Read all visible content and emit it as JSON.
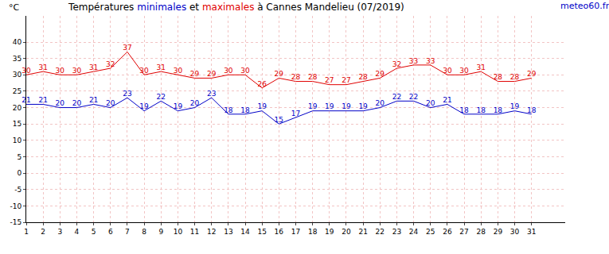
{
  "chart_data": {
    "type": "line",
    "title": "Températures minimales et maximales à Cannes Mandelieu (07/2019)",
    "source": "meteo60.fr",
    "ylabel": "°C",
    "x": [
      1,
      2,
      3,
      4,
      5,
      6,
      7,
      8,
      9,
      10,
      11,
      12,
      13,
      14,
      15,
      16,
      17,
      18,
      19,
      20,
      21,
      22,
      23,
      24,
      25,
      26,
      27,
      28,
      29,
      30,
      31
    ],
    "series": [
      {
        "name": "maximales",
        "color": "#e00000",
        "values": [
          30,
          31,
          30,
          30,
          31,
          32,
          37,
          30,
          31,
          30,
          29,
          29,
          30,
          30,
          26,
          29,
          28,
          28,
          27,
          27,
          28,
          29,
          32,
          33,
          33,
          30,
          30,
          31,
          28,
          28,
          29
        ]
      },
      {
        "name": "minimales",
        "color": "#0000c8",
        "values": [
          21,
          21,
          20,
          20,
          21,
          20,
          23,
          19,
          22,
          19,
          20,
          23,
          18,
          18,
          19,
          15,
          17,
          19,
          19,
          19,
          19,
          20,
          22,
          22,
          20,
          21,
          18,
          18,
          18,
          19,
          18
        ]
      }
    ],
    "xlim": [
      1,
      33
    ],
    "xticks": [
      1,
      2,
      3,
      4,
      5,
      6,
      7,
      8,
      9,
      10,
      11,
      12,
      13,
      14,
      15,
      16,
      17,
      18,
      19,
      20,
      21,
      22,
      23,
      24,
      25,
      26,
      27,
      28,
      29,
      30,
      31
    ],
    "ylim": [
      -15,
      48
    ],
    "yticks": [
      -15,
      -10,
      -5,
      0,
      5,
      10,
      15,
      20,
      25,
      30,
      35,
      40
    ],
    "grid": true,
    "data_labels": true
  }
}
